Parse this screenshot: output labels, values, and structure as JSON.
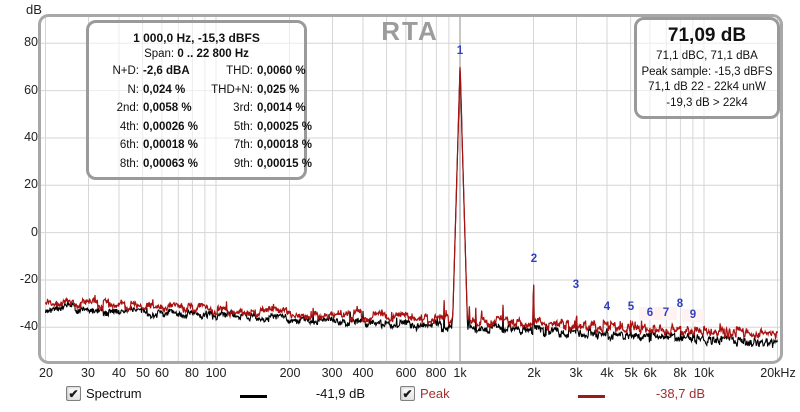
{
  "app": {
    "title": "RTA"
  },
  "y_axis_unit": "dB",
  "readout_box": {
    "title": "1 000,0 Hz, -15,3 dBFS",
    "span_label": "Span:",
    "span_value": "0 .. 22 800 Hz",
    "rows": [
      {
        "l1": "N+D:",
        "v1": "-2,6 dBA",
        "l2": "THD:",
        "v2": "0,0060 %"
      },
      {
        "l1": "N:",
        "v1": "0,024 %",
        "l2": "THD+N:",
        "v2": "0,025 %"
      },
      {
        "l1": "2nd:",
        "v1": "0,0058 %",
        "l2": "3rd:",
        "v2": "0,0014 %"
      },
      {
        "l1": "4th:",
        "v1": "0,00026 %",
        "l2": "5th:",
        "v2": "0,00025 %"
      },
      {
        "l1": "6th:",
        "v1": "0,00018 %",
        "l2": "7th:",
        "v2": "0,00018 %"
      },
      {
        "l1": "8th:",
        "v1": "0,00063 %",
        "l2": "9th:",
        "v2": "0,00015 %"
      }
    ]
  },
  "peak_box": {
    "level": "71,09 dB",
    "lines": [
      "71,1 dBC, 71,1 dBA",
      "Peak sample: -15,3 dBFS",
      "71,1 dB 22 - 22k4 unW",
      "-19,3 dB > 22k4"
    ]
  },
  "legend": {
    "spectrum": {
      "label": "Spectrum",
      "value": "-41,9 dB",
      "checked": true
    },
    "peak": {
      "label": "Peak",
      "value": "-38,7 dB",
      "checked": true
    }
  },
  "colors": {
    "spectrum_trace": "#000000",
    "peak_trace": "#aa1111",
    "peak_text": "#a03030",
    "peak_swatch": "#9b1b1b",
    "marker_blue": "#2f3fbe",
    "grid": "#d6d6d6",
    "frame": "#a8a8a8",
    "cursor": "#8f8f8f"
  },
  "chart_data": {
    "type": "line",
    "title": "RTA",
    "x_axis": {
      "scale": "log",
      "min_hz": 20,
      "max_hz": 20000,
      "unit": "Hz",
      "ticks": [
        {
          "f": 20,
          "label": "20"
        },
        {
          "f": 30,
          "label": "30"
        },
        {
          "f": 40,
          "label": "40"
        },
        {
          "f": 50,
          "label": "50"
        },
        {
          "f": 60,
          "label": "60"
        },
        {
          "f": 80,
          "label": "80"
        },
        {
          "f": 100,
          "label": "100"
        },
        {
          "f": 200,
          "label": "200"
        },
        {
          "f": 300,
          "label": "300"
        },
        {
          "f": 400,
          "label": "400"
        },
        {
          "f": 600,
          "label": "600"
        },
        {
          "f": 800,
          "label": "800"
        },
        {
          "f": 1000,
          "label": "1k"
        },
        {
          "f": 2000,
          "label": "2k"
        },
        {
          "f": 3000,
          "label": "3k"
        },
        {
          "f": 4000,
          "label": "4k"
        },
        {
          "f": 5000,
          "label": "5k"
        },
        {
          "f": 6000,
          "label": "6k"
        },
        {
          "f": 8000,
          "label": "8k"
        },
        {
          "f": 10000,
          "label": "10k"
        },
        {
          "f": 20000,
          "label": "20kHz"
        }
      ]
    },
    "y_axis": {
      "unit": "dB",
      "min": -55,
      "max": 91,
      "ticks": [
        80,
        60,
        40,
        20,
        0,
        -20,
        -40
      ],
      "grid": true
    },
    "cursor_hz": 1000,
    "fundamental": {
      "freq_hz": 1000,
      "level_db": 71.1
    },
    "series": [
      {
        "name": "Spectrum",
        "readout_db": "-41,9 dB",
        "floor_db_at_20hz": -31.5,
        "floor_db_at_20khz": -46.5
      },
      {
        "name": "Peak",
        "readout_db": "-38,7 dB",
        "floor_db_at_20hz": -29.3,
        "floor_db_at_20khz": -43.0
      }
    ],
    "markers": [
      {
        "n": "1",
        "f": 1000,
        "top_db": 71.2,
        "hl": false
      },
      {
        "n": "2",
        "f": 2000,
        "top_db": -16.5,
        "hl": false
      },
      {
        "n": "3",
        "f": 3000,
        "top_db": -27.6,
        "hl": false
      },
      {
        "n": "4",
        "f": 4000,
        "top_db": -37.0,
        "hl": false
      },
      {
        "n": "5",
        "f": 5000,
        "top_db": -36.8,
        "hl": false
      },
      {
        "n": "6",
        "f": 6000,
        "top_db": -39.5,
        "hl": true
      },
      {
        "n": "7",
        "f": 7000,
        "top_db": -39.5,
        "hl": true
      },
      {
        "n": "8",
        "f": 8000,
        "top_db": -35.7,
        "hl": false
      },
      {
        "n": "9",
        "f": 9000,
        "top_db": -40.5,
        "hl": true
      }
    ],
    "minor_peaks": [
      {
        "f": 250,
        "top_db": -29.5
      },
      {
        "f": 315,
        "top_db": -33.0
      },
      {
        "f": 860,
        "top_db": -26.0
      },
      {
        "f": 930,
        "top_db": -29.0
      },
      {
        "f": 1090,
        "top_db": -25.0
      },
      {
        "f": 1160,
        "top_db": -31.0
      },
      {
        "f": 1500,
        "top_db": -30.0
      }
    ],
    "legend_position": "bottom"
  }
}
